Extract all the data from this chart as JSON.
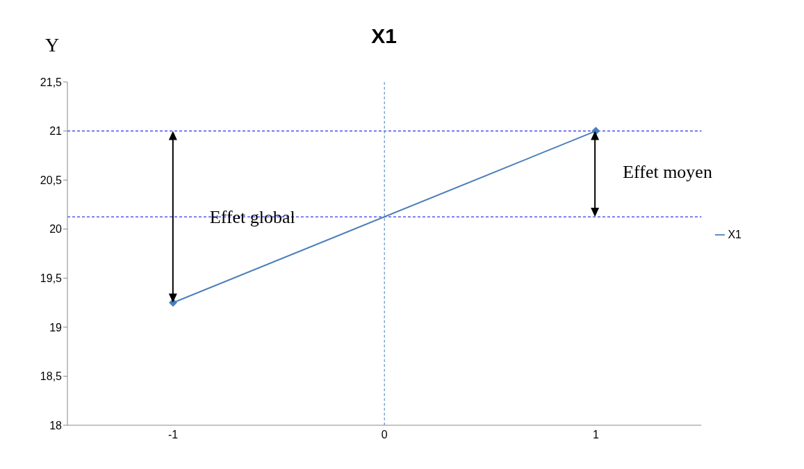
{
  "chart_data": {
    "type": "line",
    "title": "X1",
    "ylabel": "Y",
    "categories": [
      "-1",
      "0",
      "1"
    ],
    "series": [
      {
        "name": "X1",
        "color": "#4a7ebb",
        "values": [
          19.25,
          null,
          21
        ]
      }
    ],
    "ylim": [
      18,
      21.5
    ],
    "yticks": [
      18,
      {
        "value": 18.5,
        "label": "18,5"
      },
      19,
      {
        "value": 19.5,
        "label": "19,5"
      },
      20,
      {
        "value": 20.5,
        "label": "20,5"
      },
      21,
      {
        "value": 21.5,
        "label": "21,5"
      }
    ],
    "ref_lines": [
      {
        "axis": "y",
        "value": 21,
        "color": "#0000ee",
        "line_style": "dashed"
      },
      {
        "axis": "y",
        "value": 20.125,
        "color": "#0000ee",
        "line_style": "dashed"
      },
      {
        "axis": "x",
        "value": "0",
        "color": "#4a7ebb",
        "line_style": "dashed"
      }
    ],
    "annotations": [
      "Effet global",
      "Effet moyen"
    ],
    "marker": "diamond",
    "line_style": "solid",
    "legend": "right",
    "grid": false
  }
}
